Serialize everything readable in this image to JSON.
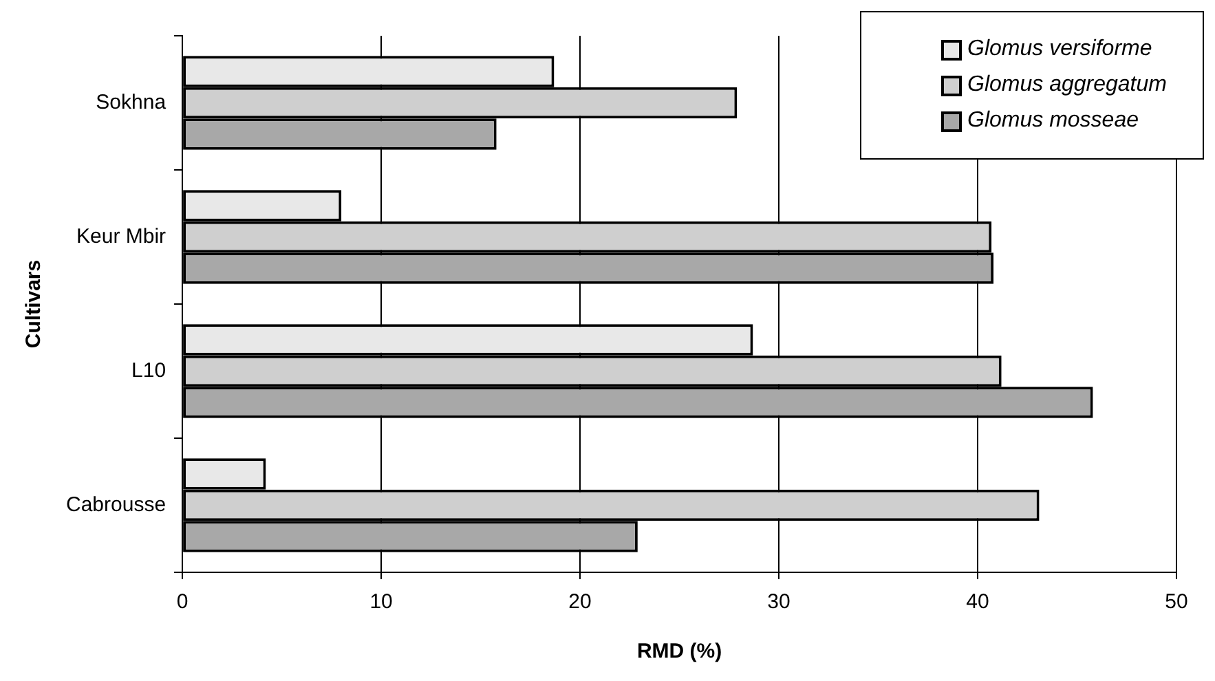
{
  "chart_data": {
    "type": "bar",
    "orientation": "horizontal",
    "xlabel": "RMD (%)",
    "ylabel": "Cultivars",
    "categories": [
      "Sokhna",
      "Keur Mbir",
      "L10",
      "Cabrousse"
    ],
    "series": [
      {
        "name": "Glomus versiforme",
        "color": "#e8e8e8",
        "values": [
          18.7,
          8.0,
          28.7,
          4.2
        ]
      },
      {
        "name": "Glomus aggregatum",
        "color": "#cfcfcf",
        "values": [
          27.9,
          40.7,
          41.2,
          43.1
        ]
      },
      {
        "name": "Glomus mosseae",
        "color": "#a8a8a8",
        "values": [
          15.8,
          40.8,
          45.8,
          22.9
        ]
      }
    ],
    "xlim": [
      0,
      50
    ],
    "xticks": [
      0,
      10,
      20,
      30,
      40,
      50
    ],
    "grid": "x",
    "legend": "top right"
  }
}
